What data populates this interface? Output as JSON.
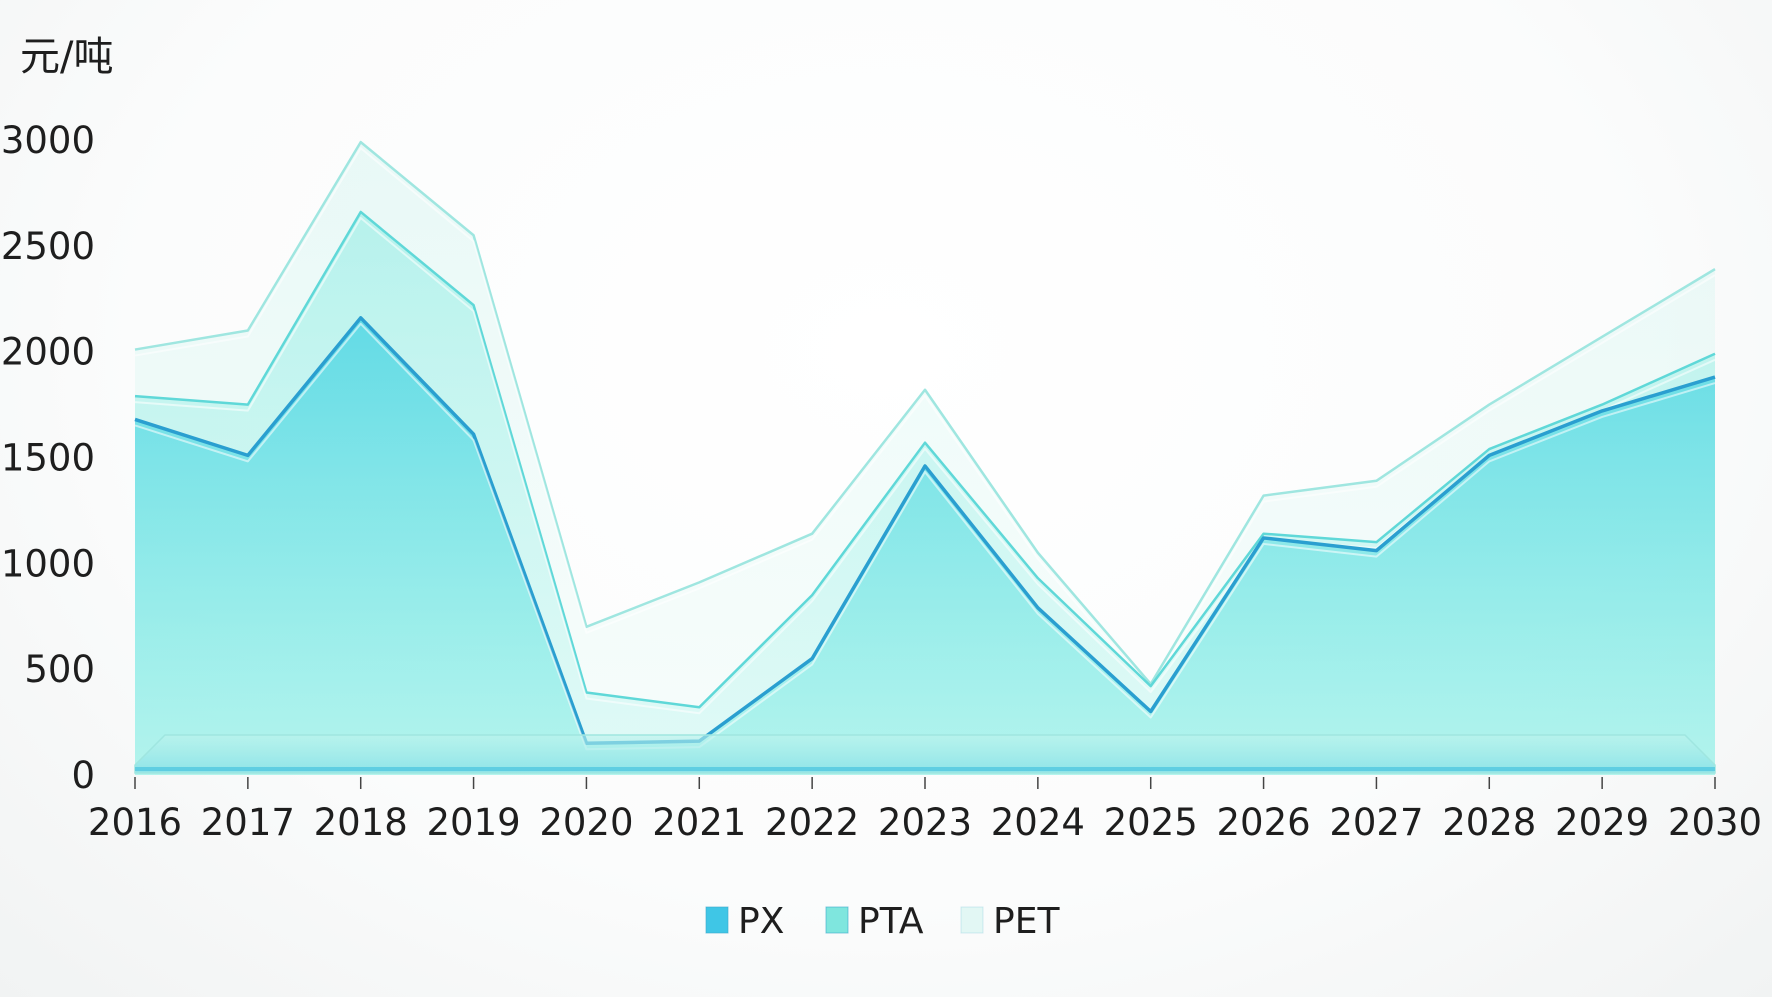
{
  "chart_data": {
    "type": "area",
    "title": "",
    "xlabel": "",
    "ylabel": "元/吨",
    "ylim": [
      0,
      3000
    ],
    "yticks": [
      "0",
      "500",
      "1000",
      "1500",
      "2000",
      "2500",
      "3000"
    ],
    "categories": [
      "2016",
      "2017",
      "2018",
      "2019",
      "2020",
      "2021",
      "2022",
      "2023",
      "2024",
      "2025",
      "2026",
      "2027",
      "2028",
      "2029",
      "2030"
    ],
    "stacked": false,
    "grid": false,
    "legend_position": "bottom",
    "series": [
      {
        "name": "PX",
        "color": "#3fc6e6",
        "values": [
          1680,
          1510,
          2160,
          1610,
          150,
          160,
          550,
          1460,
          790,
          300,
          1120,
          1060,
          1510,
          1720,
          1880
        ]
      },
      {
        "name": "PTA",
        "color": "#6fe3dc",
        "values": [
          1790,
          1750,
          2660,
          2220,
          390,
          320,
          850,
          1570,
          930,
          420,
          1140,
          1100,
          1540,
          1750,
          1990
        ]
      },
      {
        "name": "PET",
        "color": "#dcf6f3",
        "values": [
          2010,
          2100,
          2990,
          2550,
          700,
          910,
          1140,
          1820,
          1050,
          430,
          1320,
          1390,
          1750,
          2070,
          2390
        ]
      }
    ]
  }
}
